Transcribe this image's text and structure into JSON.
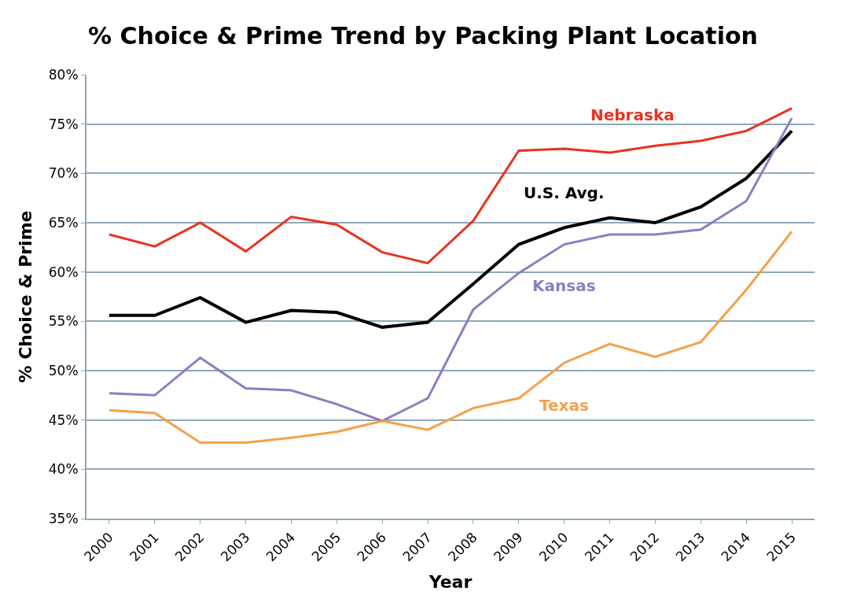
{
  "chart_data": {
    "type": "line",
    "title": "% Choice & Prime Trend by Packing Plant Location",
    "xlabel": "Year",
    "ylabel": "% Choice & Prime",
    "categories": [
      "2000",
      "2001",
      "2002",
      "2003",
      "2004",
      "2005",
      "2006",
      "2007",
      "2008",
      "2009",
      "2010",
      "2011",
      "2012",
      "2013",
      "2014",
      "2015"
    ],
    "series": [
      {
        "name": "Nebraska",
        "color": "#e8321e",
        "values": [
          63.8,
          62.6,
          65.0,
          62.1,
          65.6,
          64.8,
          62.0,
          60.9,
          65.2,
          72.3,
          72.5,
          72.1,
          72.8,
          73.3,
          74.3,
          76.6
        ]
      },
      {
        "name": "U.S. Avg.",
        "color": "#000000",
        "values": [
          55.6,
          55.6,
          57.4,
          54.9,
          56.1,
          55.9,
          54.4,
          54.9,
          58.8,
          62.8,
          64.5,
          65.5,
          65.0,
          66.6,
          69.5,
          74.3
        ]
      },
      {
        "name": "Kansas",
        "color": "#8e7cc3",
        "values": [
          47.7,
          47.5,
          51.3,
          48.2,
          48.0,
          46.6,
          44.9,
          47.2,
          56.2,
          59.9,
          62.8,
          63.8,
          63.8,
          64.3,
          67.2,
          75.6
        ]
      },
      {
        "name": "Texas",
        "color": "#f5a04a",
        "values": [
          46.0,
          45.7,
          42.7,
          42.7,
          43.2,
          43.8,
          44.9,
          44.0,
          46.2,
          47.2,
          50.8,
          52.7,
          51.4,
          52.9,
          58.2,
          64.1
        ]
      }
    ],
    "ylim": [
      35,
      80
    ],
    "yticks": [
      {
        "value": 35,
        "label": "35%"
      },
      {
        "value": 40,
        "label": "40%"
      },
      {
        "value": 45,
        "label": "45%"
      },
      {
        "value": 50,
        "label": "50%"
      },
      {
        "value": 55,
        "label": "55%"
      },
      {
        "value": 60,
        "label": "60%"
      },
      {
        "value": 65,
        "label": "65%"
      },
      {
        "value": 70,
        "label": "70%"
      },
      {
        "value": 75,
        "label": "75%"
      },
      {
        "value": 80,
        "label": "80%"
      }
    ],
    "grid": "y",
    "legend": false,
    "marker": "none",
    "line_style": "solid"
  }
}
